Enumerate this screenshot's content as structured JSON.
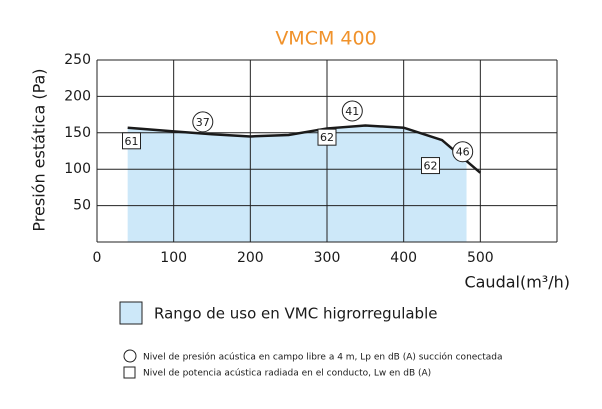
{
  "chart_data": {
    "type": "line",
    "title": "VMCM 400",
    "x_label": "Caudal(m³/h)",
    "y_label": "Presión estática  (Pa)",
    "x": [
      40,
      100,
      150,
      200,
      250,
      300,
      350,
      400,
      450,
      500
    ],
    "series": [
      {
        "color": "#1a1a1a",
        "values": [
          157,
          152,
          148,
          145,
          147,
          156,
          160,
          157,
          140,
          95
        ]
      }
    ],
    "area": {
      "name": "Rango de uso en VMC higrorregulable",
      "color": "#cde8f9",
      "x_range": [
        40,
        482
      ]
    },
    "circle_labels": [
      {
        "x": 138,
        "y": 165,
        "text": "37"
      },
      {
        "x": 333,
        "y": 180,
        "text": "41"
      },
      {
        "x": 477,
        "y": 124,
        "text": "46"
      }
    ],
    "square_labels": [
      {
        "x": 45,
        "y": 139,
        "text": "61"
      },
      {
        "x": 300,
        "y": 144,
        "text": "62"
      },
      {
        "x": 435,
        "y": 105,
        "text": "62"
      }
    ],
    "xlim": [
      0,
      600
    ],
    "xticks": [
      0,
      100,
      200,
      300,
      400,
      500
    ],
    "ylim": [
      0,
      250
    ],
    "yticks": [
      50,
      100,
      150,
      200,
      250
    ],
    "grid": true,
    "notes": [
      "Nivel de presión acústica en campo libre a 4 m, Lp en dB (A) succión conectada",
      "Nivel de potencia acústica radiada en el conducto, Lw en dB (A)"
    ]
  }
}
